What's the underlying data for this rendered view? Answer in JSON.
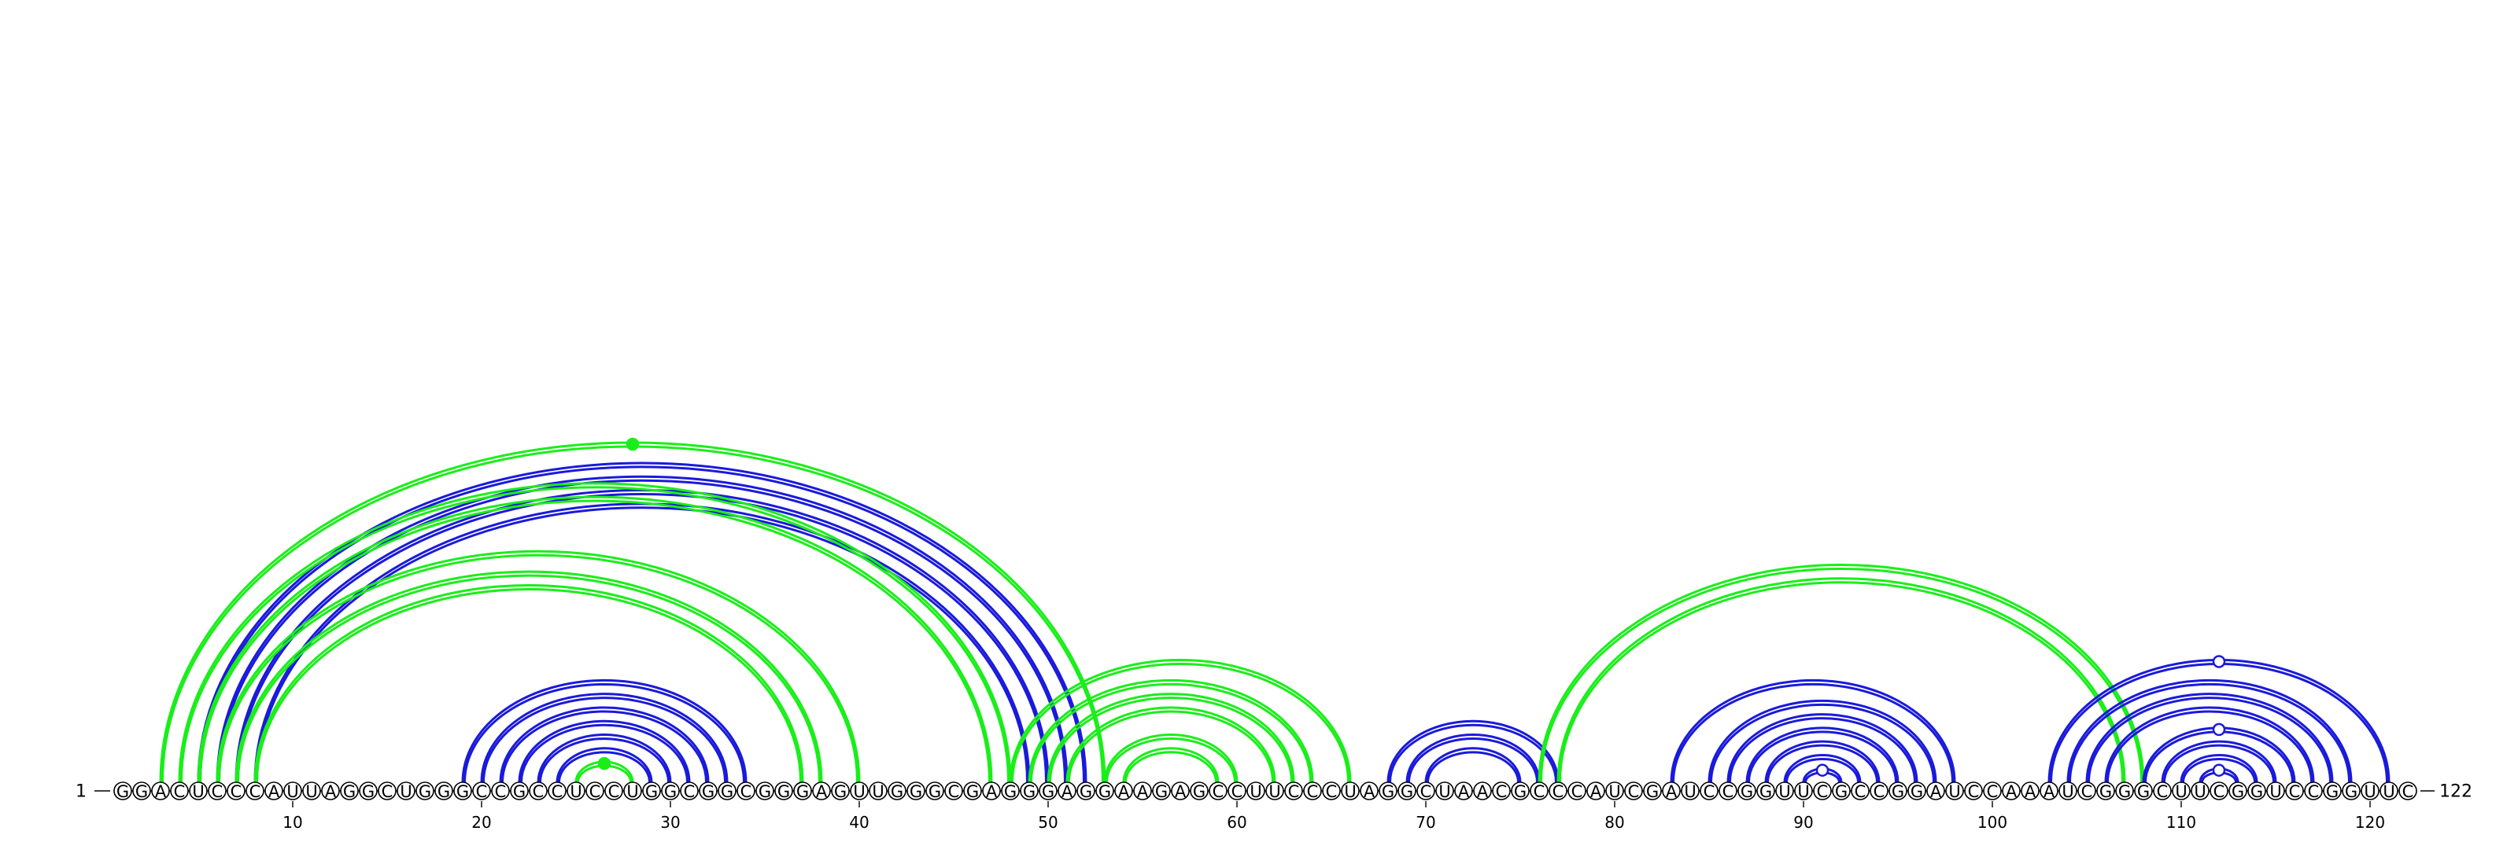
{
  "sequence": {
    "start_label": "1",
    "end_label": "122",
    "nucleotides": "GGACUCCCAUUAGGCUGGGCCGCCUCCUGGCGGCGGGAGUUGGGCGAGGGAGGAAGAGCCUUCCCUAGGCUAACGCCCAUCGAUCCGGUUCGCCGGAUCCAAAUCGGGCUUCGGUCCGGUUC"
  },
  "axis": {
    "ticks": [
      10,
      20,
      30,
      40,
      50,
      60,
      70,
      80,
      90,
      100,
      110,
      120
    ]
  },
  "colors": {
    "blue": "#1a1adb",
    "green": "#1aee1a",
    "text": "#000000"
  },
  "arc_sets": [
    {
      "color": "blue",
      "pairs": [
        [
          5,
          52
        ],
        [
          6,
          51
        ],
        [
          7,
          50
        ],
        [
          8,
          49
        ]
      ]
    },
    {
      "color": "green",
      "pairs": [
        [
          3,
          53
        ],
        [
          4,
          48
        ],
        [
          5,
          47
        ]
      ]
    },
    {
      "color": "green",
      "pairs": [
        [
          6,
          40
        ],
        [
          7,
          38
        ],
        [
          8,
          37
        ]
      ]
    },
    {
      "color": "blue",
      "pairs": [
        [
          19,
          34
        ],
        [
          20,
          33
        ],
        [
          21,
          32
        ],
        [
          22,
          31
        ],
        [
          23,
          30
        ],
        [
          24,
          29
        ]
      ]
    },
    {
      "color": "green",
      "pairs": [
        [
          25,
          28
        ]
      ]
    },
    {
      "color": "green",
      "pairs": [
        [
          48,
          66
        ],
        [
          49,
          64
        ],
        [
          50,
          63
        ],
        [
          51,
          62
        ],
        [
          53,
          60
        ],
        [
          54,
          59
        ]
      ]
    },
    {
      "color": "blue",
      "pairs": [
        [
          68,
          77
        ],
        [
          69,
          76
        ],
        [
          70,
          75
        ]
      ]
    },
    {
      "color": "green",
      "pairs": [
        [
          76,
          108
        ],
        [
          77,
          107
        ]
      ]
    },
    {
      "color": "blue",
      "pairs": [
        [
          83,
          98
        ],
        [
          85,
          97
        ],
        [
          86,
          96
        ],
        [
          87,
          95
        ],
        [
          88,
          94
        ],
        [
          89,
          93
        ],
        [
          90,
          92
        ]
      ]
    },
    {
      "color": "blue",
      "pairs": [
        [
          103,
          121
        ],
        [
          104,
          119
        ],
        [
          105,
          118
        ],
        [
          106,
          117
        ],
        [
          108,
          116
        ],
        [
          109,
          115
        ],
        [
          110,
          114
        ],
        [
          111,
          113
        ]
      ]
    }
  ],
  "markers": [
    {
      "color": "green",
      "filled": true,
      "pair": [
        3,
        53
      ]
    },
    {
      "color": "green",
      "filled": true,
      "pair": [
        25,
        28
      ]
    },
    {
      "color": "blue",
      "filled": false,
      "pair": [
        90,
        92
      ]
    },
    {
      "color": "blue",
      "filled": false,
      "pair": [
        103,
        121
      ]
    },
    {
      "color": "blue",
      "filled": false,
      "pair": [
        108,
        116
      ]
    },
    {
      "color": "blue",
      "filled": false,
      "pair": [
        111,
        113
      ]
    }
  ]
}
